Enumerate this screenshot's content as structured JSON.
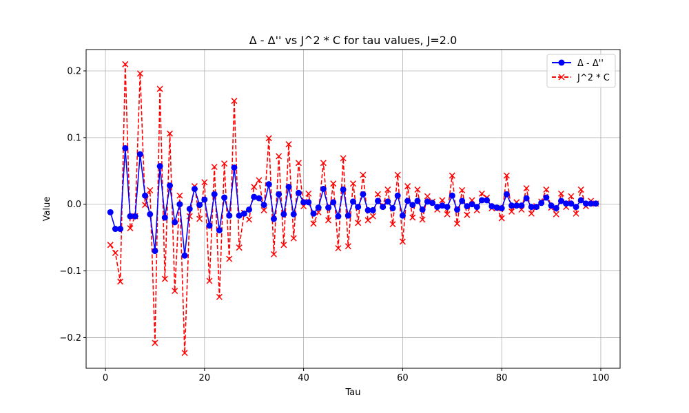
{
  "chart_data": {
    "type": "line",
    "title": "Δ - Δ'' vs J^2 * C for tau values, J=2.0",
    "xlabel": "Tau",
    "ylabel": "Value",
    "xlim": [
      -3.9,
      103.9
    ],
    "ylim": [
      -0.246,
      0.232
    ],
    "xticks": [
      0,
      20,
      40,
      60,
      80,
      100
    ],
    "yticks": [
      -0.2,
      -0.1,
      0.0,
      0.1,
      0.2
    ],
    "xtick_labels": [
      "0",
      "20",
      "40",
      "60",
      "80",
      "100"
    ],
    "ytick_labels": [
      "−0.2",
      "−0.1",
      "0.0",
      "0.1",
      "0.2"
    ],
    "grid": true,
    "legend_position": "upper right",
    "x": [
      1,
      2,
      3,
      4,
      5,
      6,
      7,
      8,
      9,
      10,
      11,
      12,
      13,
      14,
      15,
      16,
      17,
      18,
      19,
      20,
      21,
      22,
      23,
      24,
      25,
      26,
      27,
      28,
      29,
      30,
      31,
      32,
      33,
      34,
      35,
      36,
      37,
      38,
      39,
      40,
      41,
      42,
      43,
      44,
      45,
      46,
      47,
      48,
      49,
      50,
      51,
      52,
      53,
      54,
      55,
      56,
      57,
      58,
      59,
      60,
      61,
      62,
      63,
      64,
      65,
      66,
      67,
      68,
      69,
      70,
      71,
      72,
      73,
      74,
      75,
      76,
      77,
      78,
      79,
      80,
      81,
      82,
      83,
      84,
      85,
      86,
      87,
      88,
      89,
      90,
      91,
      92,
      93,
      94,
      95,
      96,
      97,
      98,
      99
    ],
    "series": [
      {
        "name": "Δ - Δ''",
        "color": "#0000ff",
        "linestyle": "solid",
        "marker": "circle",
        "values": [
          -0.012,
          -0.037,
          -0.037,
          0.084,
          -0.018,
          -0.018,
          0.075,
          0.013,
          -0.015,
          -0.07,
          0.057,
          -0.02,
          0.028,
          -0.027,
          0.0,
          -0.077,
          -0.007,
          0.023,
          -0.001,
          0.007,
          -0.032,
          0.015,
          -0.039,
          0.01,
          -0.017,
          0.055,
          -0.017,
          -0.014,
          -0.008,
          0.011,
          0.009,
          -0.001,
          0.03,
          -0.022,
          0.015,
          -0.015,
          0.026,
          -0.015,
          0.017,
          0.003,
          0.003,
          -0.014,
          -0.005,
          0.023,
          -0.005,
          0.003,
          -0.018,
          0.022,
          -0.017,
          0.004,
          -0.004,
          0.015,
          -0.009,
          -0.009,
          0.005,
          -0.004,
          0.004,
          -0.006,
          0.013,
          -0.017,
          0.005,
          -0.001,
          0.005,
          -0.008,
          0.004,
          0.002,
          -0.004,
          -0.002,
          -0.004,
          0.013,
          -0.008,
          0.005,
          -0.003,
          0.0,
          -0.004,
          0.006,
          0.006,
          -0.003,
          -0.005,
          -0.006,
          0.015,
          -0.002,
          -0.002,
          -0.002,
          0.009,
          -0.004,
          -0.004,
          0.002,
          0.01,
          -0.002,
          -0.006,
          0.005,
          0.001,
          0.001,
          -0.004,
          0.006,
          0.001,
          0.001,
          0.001
        ]
      },
      {
        "name": "J^2 * C",
        "color": "#ff0000",
        "linestyle": "dashed",
        "marker": "x",
        "values": [
          -0.061,
          -0.073,
          -0.116,
          0.21,
          -0.036,
          -0.018,
          0.196,
          -0.001,
          0.021,
          -0.208,
          0.173,
          -0.112,
          0.106,
          -0.13,
          0.013,
          -0.223,
          -0.018,
          0.027,
          -0.022,
          0.033,
          -0.115,
          0.056,
          -0.139,
          0.061,
          -0.082,
          0.155,
          -0.065,
          -0.013,
          -0.023,
          0.026,
          0.036,
          -0.009,
          0.099,
          -0.075,
          0.072,
          -0.061,
          0.09,
          -0.051,
          0.062,
          -0.003,
          0.016,
          -0.029,
          -0.012,
          0.062,
          -0.024,
          0.031,
          -0.066,
          0.069,
          -0.063,
          0.031,
          -0.028,
          0.044,
          -0.024,
          -0.018,
          0.015,
          -0.002,
          0.022,
          -0.03,
          0.044,
          -0.056,
          0.027,
          -0.02,
          0.022,
          -0.023,
          0.012,
          0.004,
          -0.008,
          0.006,
          -0.015,
          0.043,
          -0.029,
          0.021,
          -0.016,
          0.006,
          -0.009,
          0.016,
          0.01,
          -0.006,
          -0.006,
          -0.021,
          0.043,
          -0.011,
          0.003,
          -0.008,
          0.024,
          -0.014,
          -0.003,
          0.004,
          0.022,
          -0.005,
          -0.015,
          0.016,
          -0.004,
          0.012,
          -0.014,
          0.022,
          -0.003,
          0.005,
          0.001
        ]
      }
    ]
  }
}
